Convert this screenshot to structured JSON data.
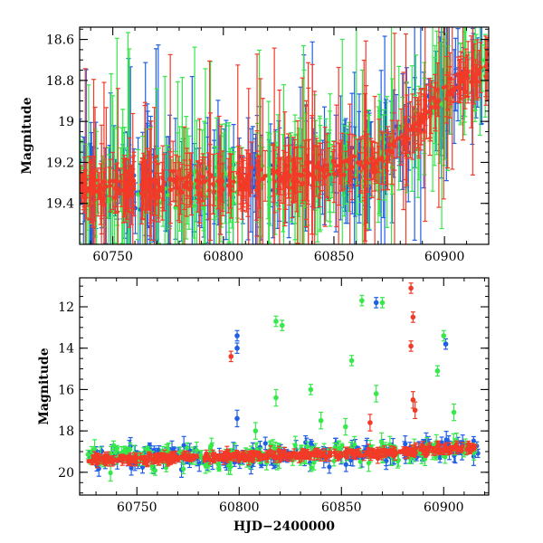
{
  "figure": {
    "x_title": "HJD−2400000",
    "colors": {
      "blue": "#1f5fe6",
      "green": "#37e84b",
      "red": "#f23a28"
    }
  },
  "chart_data": [
    {
      "type": "scatter",
      "panel": "top",
      "title": "",
      "xlabel": "",
      "ylabel": "Magnitude",
      "xlim": [
        60735,
        60920
      ],
      "ylim": [
        19.6,
        18.54
      ],
      "y_inverted": true,
      "x_ticks": [
        60750,
        60800,
        60850,
        60900
      ],
      "y_ticks": [
        18.6,
        18.8,
        19,
        19.2,
        19.4
      ],
      "y_tick_labels": [
        "18.6",
        "18.8",
        "19",
        "19.2",
        "19.4"
      ],
      "error_bars": true,
      "series_colors": [
        "#1f5fe6",
        "#37e84b",
        "#f23a28"
      ],
      "trend": {
        "x": [
          60735,
          60760,
          60800,
          60840,
          60870,
          60885,
          60895,
          60905,
          60920
        ],
        "y": [
          19.33,
          19.32,
          19.3,
          19.25,
          19.2,
          19.05,
          18.92,
          18.82,
          18.74
        ]
      }
    },
    {
      "type": "scatter",
      "panel": "bottom",
      "title": "",
      "xlabel": "HJD−2400000",
      "ylabel": "Magnitude",
      "xlim": [
        60722,
        60922
      ],
      "ylim": [
        21.1,
        10.6
      ],
      "y_inverted": true,
      "x_ticks": [
        60750,
        60800,
        60850,
        60900
      ],
      "y_ticks": [
        12,
        14,
        16,
        18,
        20
      ],
      "error_bars": true,
      "series_colors": [
        "#1f5fe6",
        "#37e84b",
        "#f23a28"
      ],
      "outliers": [
        {
          "color": "blue",
          "x": 60799,
          "y": 13.4
        },
        {
          "color": "blue",
          "x": 60799,
          "y": 14.0
        },
        {
          "color": "blue",
          "x": 60799,
          "y": 17.4
        },
        {
          "color": "blue",
          "x": 60867,
          "y": 11.8
        },
        {
          "color": "blue",
          "x": 60901,
          "y": 13.8
        },
        {
          "color": "red",
          "x": 60796,
          "y": 14.4
        },
        {
          "color": "red",
          "x": 60884,
          "y": 11.1
        },
        {
          "color": "red",
          "x": 60885,
          "y": 12.5
        },
        {
          "color": "red",
          "x": 60884,
          "y": 13.9
        },
        {
          "color": "red",
          "x": 60885,
          "y": 16.5
        },
        {
          "color": "red",
          "x": 60886,
          "y": 17.0
        },
        {
          "color": "red",
          "x": 60864,
          "y": 17.6
        },
        {
          "color": "green",
          "x": 60818,
          "y": 12.7
        },
        {
          "color": "green",
          "x": 60821,
          "y": 12.9
        },
        {
          "color": "green",
          "x": 60860,
          "y": 11.7
        },
        {
          "color": "green",
          "x": 60870,
          "y": 11.8
        },
        {
          "color": "green",
          "x": 60900,
          "y": 13.4
        },
        {
          "color": "green",
          "x": 60897,
          "y": 15.1
        },
        {
          "color": "green",
          "x": 60855,
          "y": 14.6
        },
        {
          "color": "green",
          "x": 60835,
          "y": 16.0
        },
        {
          "color": "green",
          "x": 60818,
          "y": 16.4
        },
        {
          "color": "green",
          "x": 60867,
          "y": 16.2
        },
        {
          "color": "green",
          "x": 60905,
          "y": 17.1
        },
        {
          "color": "green",
          "x": 60840,
          "y": 17.5
        },
        {
          "color": "green",
          "x": 60808,
          "y": 18.0
        },
        {
          "color": "green",
          "x": 60852,
          "y": 17.8
        }
      ]
    }
  ]
}
